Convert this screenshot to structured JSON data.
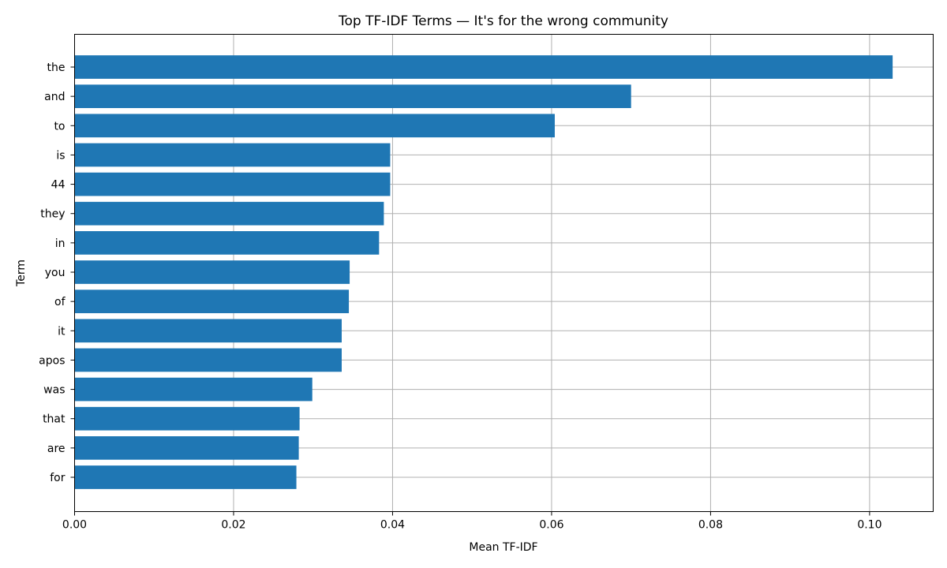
{
  "chart_data": {
    "type": "bar",
    "orientation": "horizontal",
    "title": "Top TF-IDF Terms — It's for the wrong community",
    "xlabel": "Mean TF-IDF",
    "ylabel": "Term",
    "xlim": [
      0,
      0.108
    ],
    "xticks": [
      0.0,
      0.02,
      0.04,
      0.06,
      0.08,
      0.1
    ],
    "xtick_labels": [
      "0.00",
      "0.02",
      "0.04",
      "0.06",
      "0.08",
      "0.10"
    ],
    "grid": true,
    "bar_color": "#1f77b4",
    "categories": [
      "the",
      "and",
      "to",
      "is",
      "44",
      "they",
      "in",
      "you",
      "of",
      "it",
      "apos",
      "was",
      "that",
      "are",
      "for"
    ],
    "values": [
      0.1029,
      0.07,
      0.0604,
      0.0397,
      0.0397,
      0.0389,
      0.0383,
      0.0346,
      0.0345,
      0.0336,
      0.0336,
      0.0299,
      0.0283,
      0.0282,
      0.0279
    ]
  }
}
